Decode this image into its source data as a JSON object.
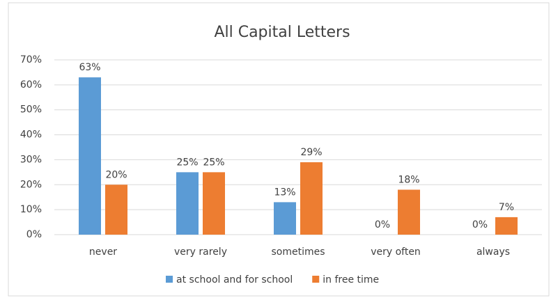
{
  "chart_data": {
    "type": "bar",
    "title": "All Capital Letters",
    "categories": [
      "never",
      "very rarely",
      "sometimes",
      "very often",
      "always"
    ],
    "series": [
      {
        "name": "at school and for school",
        "color": "#5b9bd5",
        "values": [
          63,
          25,
          13,
          0,
          0
        ],
        "value_labels": [
          "63%",
          "25%",
          "13%",
          "0%",
          "0%"
        ]
      },
      {
        "name": "in free time",
        "color": "#ed7d31",
        "values": [
          20,
          25,
          29,
          18,
          7
        ],
        "value_labels": [
          "20%",
          "25%",
          "29%",
          "18%",
          "7%"
        ]
      }
    ],
    "ylim": [
      0,
      70
    ],
    "yticks": [
      {
        "value": 0,
        "label": "0%"
      },
      {
        "value": 10,
        "label": "10%"
      },
      {
        "value": 20,
        "label": "20%"
      },
      {
        "value": 30,
        "label": "30%"
      },
      {
        "value": 40,
        "label": "40%"
      },
      {
        "value": 50,
        "label": "50%"
      },
      {
        "value": 60,
        "label": "60%"
      },
      {
        "value": 70,
        "label": "70%"
      }
    ],
    "grid": true,
    "legend": "bottom"
  }
}
